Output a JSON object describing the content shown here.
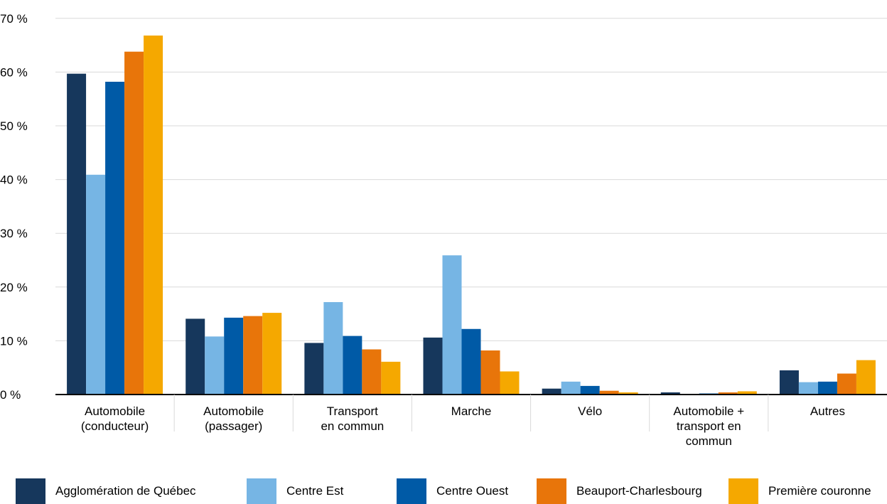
{
  "chart_data": {
    "type": "bar",
    "title": "",
    "xlabel": "",
    "ylabel": "",
    "ylim": [
      0,
      70
    ],
    "y_ticks": [
      0,
      10,
      20,
      30,
      40,
      50,
      60,
      70
    ],
    "y_tick_labels": [
      "0 %",
      "10 %",
      "20 %",
      "30 %",
      "40 %",
      "50 %",
      "60 %",
      "70 %"
    ],
    "grid": true,
    "legend_position": "bottom",
    "categories": [
      [
        "Automobile",
        "(conducteur)"
      ],
      [
        "Automobile",
        "(passager)"
      ],
      [
        "Transport",
        "en commun"
      ],
      [
        "Marche"
      ],
      [
        "Vélo"
      ],
      [
        "Automobile +",
        "transport en",
        "commun"
      ],
      [
        "Autres"
      ]
    ],
    "series": [
      {
        "name": "Agglomération de Québec",
        "color": "#16375c",
        "values": [
          59.7,
          14.1,
          9.6,
          10.6,
          1.1,
          0.4,
          4.5
        ]
      },
      {
        "name": "Centre Est",
        "color": "#76b5e4",
        "values": [
          40.9,
          10.8,
          17.2,
          25.9,
          2.4,
          0.1,
          2.3
        ]
      },
      {
        "name": "Centre Ouest",
        "color": "#005aa6",
        "values": [
          58.2,
          14.3,
          10.9,
          12.2,
          1.6,
          0.2,
          2.4
        ]
      },
      {
        "name": "Beauport-Charlesbourg",
        "color": "#e8750a",
        "values": [
          63.8,
          14.6,
          8.4,
          8.2,
          0.7,
          0.4,
          3.9
        ]
      },
      {
        "name": "Première couronne",
        "color": "#f5a800",
        "values": [
          66.8,
          15.2,
          6.1,
          4.3,
          0.4,
          0.6,
          6.4
        ]
      }
    ]
  }
}
